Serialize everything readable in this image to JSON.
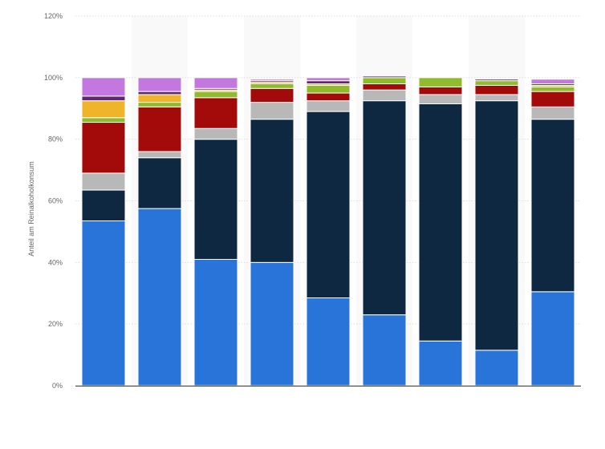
{
  "chart_data": {
    "type": "bar",
    "stacked": true,
    "categories": [
      "",
      "",
      "",
      "",
      "",
      "",
      "",
      "",
      ""
    ],
    "ylabel": "Anteil am Reinalkoholkonsum",
    "ylim": [
      0,
      120
    ],
    "yticks": [
      "0%",
      "20%",
      "40%",
      "60%",
      "80%",
      "100%",
      "120%"
    ],
    "grid": true,
    "series": [
      {
        "color": "#2874d9",
        "values": [
          53.5,
          57.5,
          41,
          40,
          28.5,
          23,
          14.5,
          11.5,
          30.5
        ]
      },
      {
        "color": "#0f2841",
        "values": [
          10,
          16.5,
          39,
          46.5,
          60.5,
          69.5,
          77,
          81,
          56
        ]
      },
      {
        "color": "#b8b8b8",
        "values": [
          5.5,
          2,
          3.5,
          5.5,
          3.5,
          3.5,
          3,
          2,
          4
        ]
      },
      {
        "color": "#a30a0a",
        "values": [
          16.5,
          14.5,
          10,
          4.5,
          2.5,
          2,
          2.5,
          3,
          5
        ]
      },
      {
        "color": "#8fbb2c",
        "values": [
          1.5,
          1.5,
          2,
          1.5,
          2.5,
          2,
          3,
          1.5,
          1.5
        ]
      },
      {
        "color": "#f0b42a",
        "values": [
          5.5,
          2.5,
          0.5,
          0.5,
          0.5,
          0,
          0,
          0,
          0.5
        ]
      },
      {
        "color": "#5e2a6b",
        "values": [
          1.5,
          1,
          0.5,
          0.5,
          1,
          0.5,
          0,
          0.5,
          0.5
        ]
      },
      {
        "color": "#c278df",
        "values": [
          6,
          4.5,
          3.5,
          0.5,
          1,
          0,
          0,
          0,
          1.5
        ]
      }
    ]
  }
}
